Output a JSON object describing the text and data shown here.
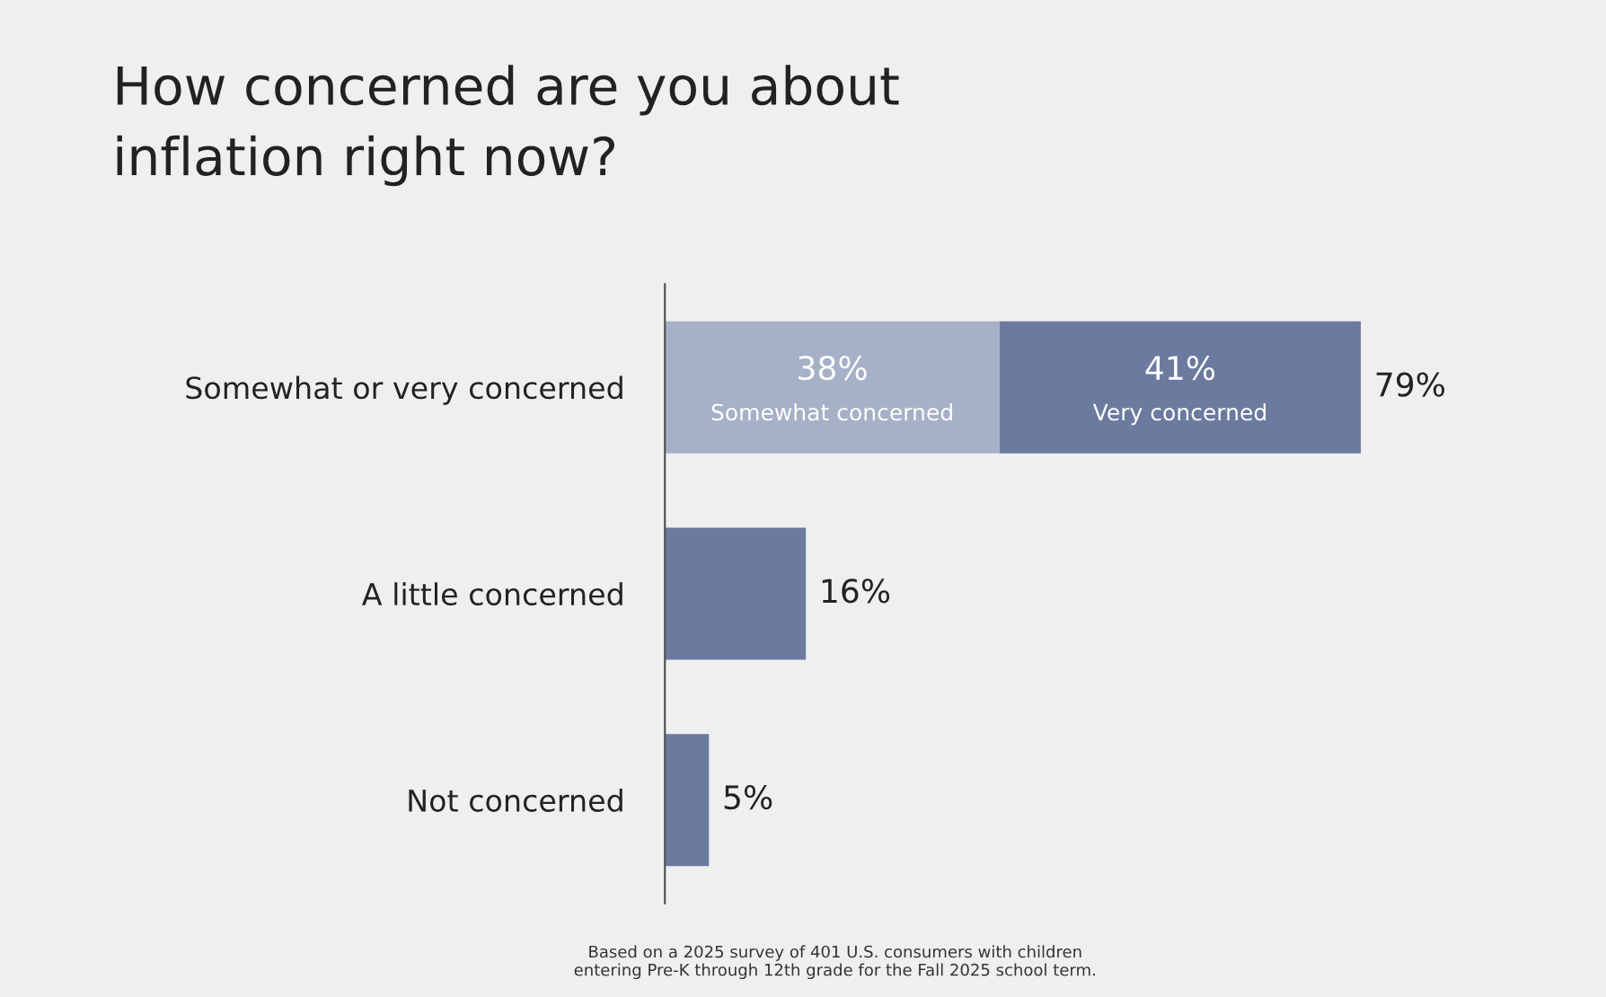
{
  "chart_data": {
    "type": "bar",
    "orientation": "horizontal",
    "stacked": true,
    "title": "How concerned are you about\ninflation right now?",
    "categories": [
      "Somewhat or very concerned",
      "A little concerned",
      "Not concerned"
    ],
    "series": [
      {
        "name": "Somewhat concerned",
        "color": "#a6b0c7",
        "values": [
          38,
          null,
          null
        ],
        "value_labels": [
          "38%",
          null,
          null
        ]
      },
      {
        "name": "Very concerned",
        "color": "#6b7a9e",
        "values": [
          41,
          null,
          null
        ],
        "value_labels": [
          "41%",
          null,
          null
        ]
      },
      {
        "color": "#6b7a9e",
        "values": [
          null,
          16,
          5
        ]
      }
    ],
    "totals": [
      "79%",
      "16%",
      "5%"
    ],
    "annotations": [
      "Based on a 2025 survey of 401 U.S. consumers with children\nentering Pre-K through 12th grade for the Fall 2025 school term."
    ],
    "grid": false,
    "legend": false
  }
}
